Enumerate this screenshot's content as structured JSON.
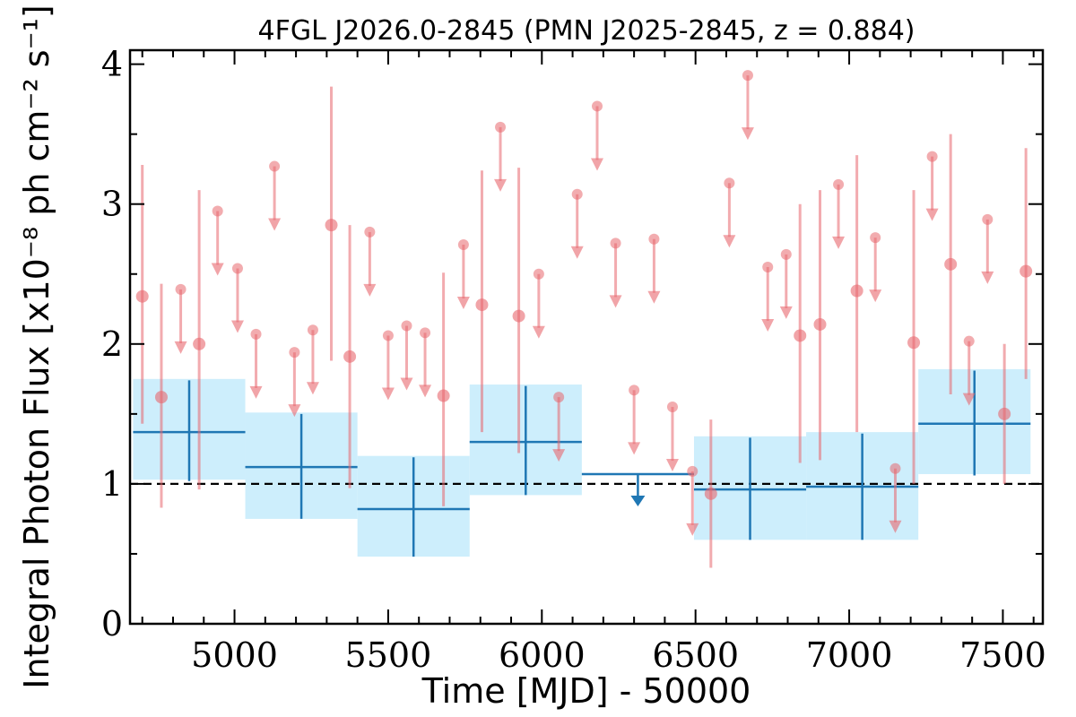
{
  "chart_data": {
    "type": "scatter",
    "title": "4FGL J2026.0-2845 (PMN J2025-2845, z = 0.884)",
    "xlabel": "Time [MJD] - 50000",
    "ylabel": "Integral Photon Flux [x10⁻⁸ ph cm⁻² s⁻¹]",
    "xlim": [
      4660,
      7630
    ],
    "ylim": [
      0,
      4.1
    ],
    "x_ticks": [
      5000,
      5500,
      6000,
      6500,
      7000,
      7500
    ],
    "y_ticks": [
      0,
      1,
      2,
      3,
      4
    ],
    "reference_line": {
      "y": 1.0,
      "style": "dashed"
    },
    "colors": {
      "long_bin_fill": "#cdeefc",
      "long_bin_line": "#1f77b4",
      "short_bin": "#e8676e"
    },
    "series": [
      {
        "bins": [
          {
            "x_start": 4670,
            "x_end": 5035,
            "y": 1.37,
            "y_low": 1.02,
            "y_high": 1.74,
            "band_low": 1.03,
            "band_high": 1.75
          },
          {
            "x_start": 5035,
            "x_end": 5400,
            "y": 1.12,
            "y_low": 0.75,
            "y_high": 1.5,
            "band_low": 0.75,
            "band_high": 1.51
          },
          {
            "x_start": 5400,
            "x_end": 5765,
            "y": 0.82,
            "y_low": 0.48,
            "y_high": 1.19,
            "band_low": 0.48,
            "band_high": 1.2
          },
          {
            "x_start": 5765,
            "x_end": 6130,
            "y": 1.3,
            "y_low": 0.92,
            "y_high": 1.7,
            "band_low": 0.92,
            "band_high": 1.71
          },
          {
            "x_start": 6130,
            "x_end": 6495,
            "y": 1.07,
            "upper_limit": true
          },
          {
            "x_start": 6495,
            "x_end": 6860,
            "y": 0.96,
            "y_low": 0.6,
            "y_high": 1.33,
            "band_low": 0.6,
            "band_high": 1.34
          },
          {
            "x_start": 6860,
            "x_end": 7225,
            "y": 0.98,
            "y_low": 0.6,
            "y_high": 1.36,
            "band_low": 0.6,
            "band_high": 1.37
          },
          {
            "x_start": 7225,
            "x_end": 7590,
            "y": 1.43,
            "y_low": 1.06,
            "y_high": 1.81,
            "band_low": 1.07,
            "band_high": 1.82
          }
        ]
      },
      {
        "detections": [
          {
            "x": 4700,
            "y": 2.34,
            "y_low": 1.43,
            "y_high": 3.28
          },
          {
            "x": 4762,
            "y": 1.62,
            "y_low": 0.83,
            "y_high": 2.43
          },
          {
            "x": 4885,
            "y": 2.0,
            "y_low": 0.96,
            "y_high": 3.1
          },
          {
            "x": 5315,
            "y": 2.85,
            "y_low": 1.88,
            "y_high": 3.84
          },
          {
            "x": 5375,
            "y": 1.91,
            "y_low": 0.97,
            "y_high": 2.85
          },
          {
            "x": 5680,
            "y": 1.63,
            "y_low": 0.84,
            "y_high": 2.51
          },
          {
            "x": 5805,
            "y": 2.28,
            "y_low": 1.37,
            "y_high": 3.24
          },
          {
            "x": 5925,
            "y": 2.2,
            "y_low": 1.22,
            "y_high": 3.26
          },
          {
            "x": 6550,
            "y": 0.93,
            "y_low": 0.4,
            "y_high": 1.46
          },
          {
            "x": 6840,
            "y": 2.06,
            "y_low": 1.15,
            "y_high": 3.0
          },
          {
            "x": 6905,
            "y": 2.14,
            "y_low": 1.17,
            "y_high": 3.1
          },
          {
            "x": 7025,
            "y": 2.38,
            "y_low": 1.37,
            "y_high": 3.35
          },
          {
            "x": 7210,
            "y": 2.01,
            "y_low": 1.0,
            "y_high": 3.1
          },
          {
            "x": 7330,
            "y": 2.57,
            "y_low": 1.64,
            "y_high": 3.5
          },
          {
            "x": 7505,
            "y": 1.5,
            "y_low": 1.0,
            "y_high": 2.0
          },
          {
            "x": 7575,
            "y": 2.52,
            "y_low": 1.75,
            "y_high": 3.4
          }
        ],
        "upper_limits": [
          {
            "x": 4825,
            "y": 2.39
          },
          {
            "x": 4945,
            "y": 2.95
          },
          {
            "x": 5010,
            "y": 2.54
          },
          {
            "x": 5070,
            "y": 2.07
          },
          {
            "x": 5130,
            "y": 3.27
          },
          {
            "x": 5195,
            "y": 1.94
          },
          {
            "x": 5255,
            "y": 2.1
          },
          {
            "x": 5440,
            "y": 2.8
          },
          {
            "x": 5500,
            "y": 2.06
          },
          {
            "x": 5560,
            "y": 2.13
          },
          {
            "x": 5620,
            "y": 2.08
          },
          {
            "x": 5745,
            "y": 2.71
          },
          {
            "x": 5865,
            "y": 3.55
          },
          {
            "x": 5990,
            "y": 2.5
          },
          {
            "x": 6055,
            "y": 1.62
          },
          {
            "x": 6115,
            "y": 3.07
          },
          {
            "x": 6180,
            "y": 3.7
          },
          {
            "x": 6240,
            "y": 2.72
          },
          {
            "x": 6300,
            "y": 1.67
          },
          {
            "x": 6365,
            "y": 2.75
          },
          {
            "x": 6425,
            "y": 1.55
          },
          {
            "x": 6490,
            "y": 1.09
          },
          {
            "x": 6610,
            "y": 3.15
          },
          {
            "x": 6670,
            "y": 3.92
          },
          {
            "x": 6735,
            "y": 2.55
          },
          {
            "x": 6795,
            "y": 2.64
          },
          {
            "x": 6965,
            "y": 3.14
          },
          {
            "x": 7085,
            "y": 2.76
          },
          {
            "x": 7150,
            "y": 1.11
          },
          {
            "x": 7270,
            "y": 3.34
          },
          {
            "x": 7390,
            "y": 2.02
          },
          {
            "x": 7450,
            "y": 2.89
          }
        ]
      }
    ]
  }
}
